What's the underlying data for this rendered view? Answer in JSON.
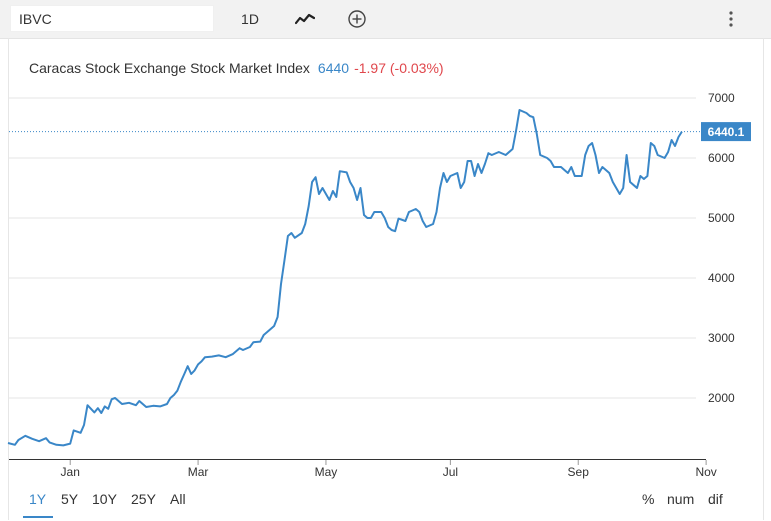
{
  "toolbar": {
    "symbol": "IBVC",
    "interval": "1D",
    "chart_type_icon": "line-chart-icon",
    "add_icon": "plus-circle-icon",
    "menu_icon": "kebab-menu-icon"
  },
  "header": {
    "title": "Caracas Stock Exchange Stock Market Index",
    "last": "6440",
    "change": "-1.97 (-0.03%)"
  },
  "last_price_label": "6440.1",
  "range": {
    "buttons": [
      "1Y",
      "5Y",
      "10Y",
      "25Y",
      "All"
    ],
    "active": "1Y",
    "modes": [
      "%",
      "num",
      "dif"
    ]
  },
  "colors": {
    "line": "#3a87c8",
    "price_label_bg": "#3a87c8",
    "change_negative": "#e0474c",
    "grid": "#e6e6e6"
  },
  "chart_data": {
    "type": "line",
    "title": "Caracas Stock Exchange Stock Market Index",
    "x_ticks": [
      "Jan",
      "Mar",
      "May",
      "Jul",
      "Sep",
      "Nov"
    ],
    "y_ticks": [
      2000,
      3000,
      4000,
      5000,
      6000,
      7000
    ],
    "ylim": [
      1000,
      7400
    ],
    "xlim": [
      0,
      230
    ],
    "x_tick_positions": [
      18,
      55,
      92,
      128,
      165,
      202
    ],
    "grid": "horizontal",
    "series": [
      {
        "values": [
          [
            0,
            1250
          ],
          [
            2,
            1220
          ],
          [
            3,
            1300
          ],
          [
            5,
            1370
          ],
          [
            7,
            1320
          ],
          [
            9,
            1280
          ],
          [
            11,
            1330
          ],
          [
            12,
            1260
          ],
          [
            14,
            1220
          ],
          [
            16,
            1210
          ],
          [
            18,
            1240
          ],
          [
            19,
            1460
          ],
          [
            21,
            1420
          ],
          [
            22,
            1550
          ],
          [
            23,
            1880
          ],
          [
            25,
            1760
          ],
          [
            26,
            1830
          ],
          [
            27,
            1750
          ],
          [
            28,
            1860
          ],
          [
            29,
            1820
          ],
          [
            30,
            1980
          ],
          [
            31,
            2000
          ],
          [
            33,
            1900
          ],
          [
            35,
            1920
          ],
          [
            37,
            1880
          ],
          [
            38,
            1950
          ],
          [
            40,
            1850
          ],
          [
            42,
            1870
          ],
          [
            44,
            1860
          ],
          [
            46,
            1900
          ],
          [
            47,
            2000
          ],
          [
            48,
            2050
          ],
          [
            49,
            2120
          ],
          [
            50,
            2270
          ],
          [
            51,
            2400
          ],
          [
            52,
            2530
          ],
          [
            53,
            2400
          ],
          [
            54,
            2460
          ],
          [
            55,
            2560
          ],
          [
            56,
            2610
          ],
          [
            57,
            2680
          ],
          [
            59,
            2690
          ],
          [
            61,
            2710
          ],
          [
            63,
            2680
          ],
          [
            65,
            2730
          ],
          [
            67,
            2830
          ],
          [
            68,
            2800
          ],
          [
            70,
            2850
          ],
          [
            71,
            2930
          ],
          [
            73,
            2940
          ],
          [
            74,
            3050
          ],
          [
            75,
            3100
          ],
          [
            77,
            3200
          ],
          [
            78,
            3350
          ],
          [
            79,
            3900
          ],
          [
            80,
            4300
          ],
          [
            81,
            4700
          ],
          [
            82,
            4750
          ],
          [
            83,
            4670
          ],
          [
            85,
            4750
          ],
          [
            86,
            4900
          ],
          [
            87,
            5200
          ],
          [
            88,
            5600
          ],
          [
            89,
            5680
          ],
          [
            90,
            5400
          ],
          [
            91,
            5500
          ],
          [
            93,
            5300
          ],
          [
            94,
            5450
          ],
          [
            95,
            5350
          ],
          [
            96,
            5780
          ],
          [
            98,
            5760
          ],
          [
            99,
            5600
          ],
          [
            100,
            5500
          ],
          [
            101,
            5300
          ],
          [
            102,
            5500
          ],
          [
            103,
            5050
          ],
          [
            104,
            5000
          ],
          [
            105,
            5000
          ],
          [
            106,
            5100
          ],
          [
            108,
            5100
          ],
          [
            109,
            5000
          ],
          [
            110,
            4850
          ],
          [
            111,
            4800
          ],
          [
            112,
            4780
          ],
          [
            113,
            4990
          ],
          [
            115,
            4950
          ],
          [
            116,
            5100
          ],
          [
            118,
            5150
          ],
          [
            119,
            5100
          ],
          [
            120,
            4950
          ],
          [
            121,
            4850
          ],
          [
            123,
            4900
          ],
          [
            124,
            5100
          ],
          [
            125,
            5500
          ],
          [
            126,
            5750
          ],
          [
            127,
            5600
          ],
          [
            128,
            5700
          ],
          [
            130,
            5750
          ],
          [
            131,
            5500
          ],
          [
            132,
            5600
          ],
          [
            133,
            5950
          ],
          [
            134,
            5950
          ],
          [
            135,
            5700
          ],
          [
            136,
            5900
          ],
          [
            137,
            5750
          ],
          [
            138,
            5900
          ],
          [
            139,
            6080
          ],
          [
            140,
            6050
          ],
          [
            142,
            6100
          ],
          [
            144,
            6050
          ],
          [
            146,
            6150
          ],
          [
            147,
            6450
          ],
          [
            148,
            6800
          ],
          [
            150,
            6750
          ],
          [
            151,
            6700
          ],
          [
            152,
            6680
          ],
          [
            153,
            6400
          ],
          [
            154,
            6050
          ],
          [
            156,
            6000
          ],
          [
            157,
            5950
          ],
          [
            158,
            5850
          ],
          [
            160,
            5850
          ],
          [
            161,
            5800
          ],
          [
            162,
            5750
          ],
          [
            163,
            5850
          ],
          [
            164,
            5700
          ],
          [
            166,
            5700
          ],
          [
            167,
            6050
          ],
          [
            168,
            6200
          ],
          [
            169,
            6250
          ],
          [
            170,
            6050
          ],
          [
            171,
            5750
          ],
          [
            172,
            5850
          ],
          [
            174,
            5750
          ],
          [
            175,
            5600
          ],
          [
            177,
            5400
          ],
          [
            178,
            5500
          ],
          [
            179,
            6050
          ],
          [
            180,
            5600
          ],
          [
            182,
            5500
          ],
          [
            183,
            5700
          ],
          [
            184,
            5650
          ],
          [
            185,
            5700
          ],
          [
            186,
            6250
          ],
          [
            187,
            6200
          ],
          [
            188,
            6050
          ],
          [
            190,
            6000
          ],
          [
            191,
            6100
          ],
          [
            192,
            6300
          ],
          [
            193,
            6200
          ],
          [
            194,
            6350
          ],
          [
            195,
            6440
          ]
        ]
      }
    ]
  }
}
